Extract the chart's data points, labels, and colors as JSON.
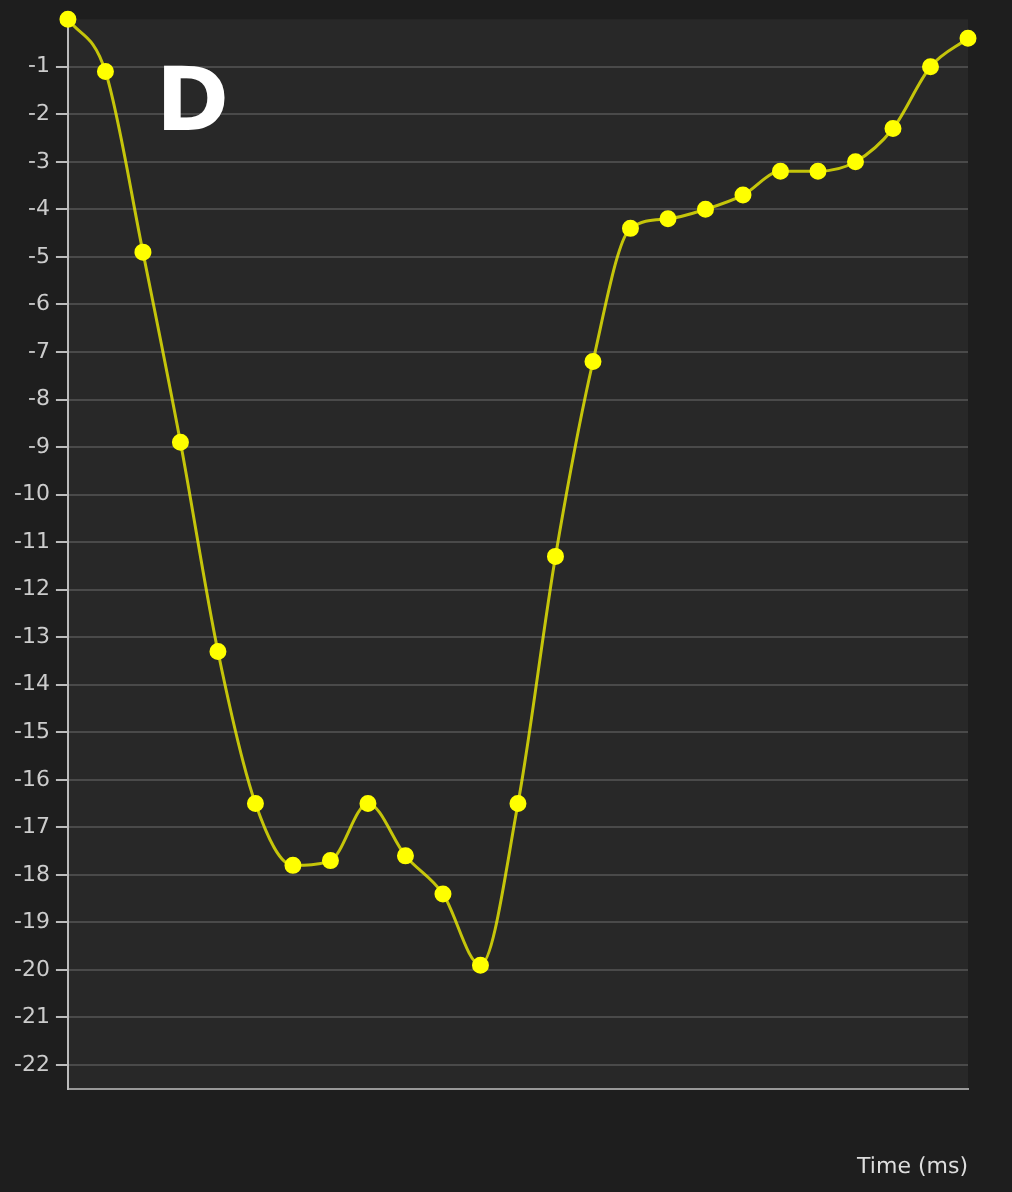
{
  "chart_data": {
    "type": "line",
    "xlabel": "Time (ms)",
    "annotations": [
      "D"
    ],
    "categories": [
      null,
      null,
      null,
      null,
      null,
      null,
      null,
      null,
      null,
      null,
      null,
      null,
      null,
      null,
      null,
      null,
      null,
      null,
      null,
      null,
      null,
      null,
      null,
      null,
      null
    ],
    "series": [
      {
        "color": "#ffff00",
        "values": [
          0,
          -1.1,
          -4.9,
          -8.9,
          -13.3,
          -16.5,
          -17.8,
          -17.7,
          -16.5,
          -17.6,
          -18.4,
          -19.9,
          -16.5,
          -11.3,
          -7.2,
          -4.4,
          -4.2,
          -4.0,
          -3.7,
          -3.2,
          -3.2,
          -3.0,
          -2.3,
          -1.0,
          -0.4
        ]
      }
    ],
    "ylim": [
      -22.5,
      0
    ],
    "yticks": [
      -1,
      -2,
      -3,
      -4,
      -5,
      -6,
      -7,
      -8,
      -9,
      -10,
      -11,
      -12,
      -13,
      -14,
      -15,
      -16,
      -17,
      -18,
      -19,
      -20,
      -21,
      -22
    ],
    "grid": "y",
    "legend": false,
    "marker": "circle",
    "line_style": "solid"
  }
}
